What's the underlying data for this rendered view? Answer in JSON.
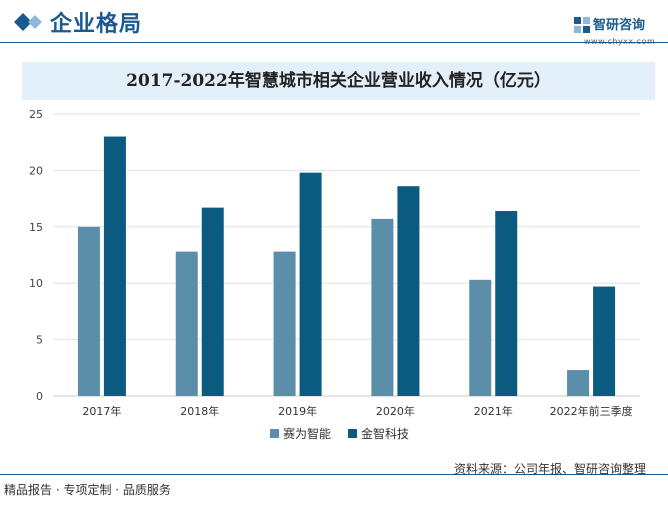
{
  "header": {
    "section_title": "企业格局",
    "brand_name": "智研咨询",
    "brand_url": "www.chyxx.com"
  },
  "chart_data": {
    "type": "bar",
    "title": "2017-2022年智慧城市相关企业营业收入情况（亿元）",
    "categories": [
      "2017年",
      "2018年",
      "2019年",
      "2020年",
      "2021年",
      "2022年前三季度"
    ],
    "series": [
      {
        "name": "赛为智能",
        "values": [
          15.0,
          12.8,
          12.8,
          15.7,
          10.3,
          2.3
        ]
      },
      {
        "name": "金智科技",
        "values": [
          23.0,
          16.7,
          19.8,
          18.6,
          16.4,
          9.7
        ]
      }
    ],
    "ylim": [
      0,
      25
    ],
    "yticks": [
      0,
      5,
      10,
      15,
      20,
      25
    ],
    "xlabel": "",
    "ylabel": "",
    "grid": true,
    "legend": "bottom-center",
    "colors": {
      "series1": "#5b8fa9",
      "series2": "#0b5a80",
      "grid": "#e2e2e2",
      "axis": "#c8c8c8"
    }
  },
  "footer": {
    "source": "资料来源：公司年报、智研咨询整理",
    "slogan": "精品报告 · 专项定制 · 品质服务"
  }
}
